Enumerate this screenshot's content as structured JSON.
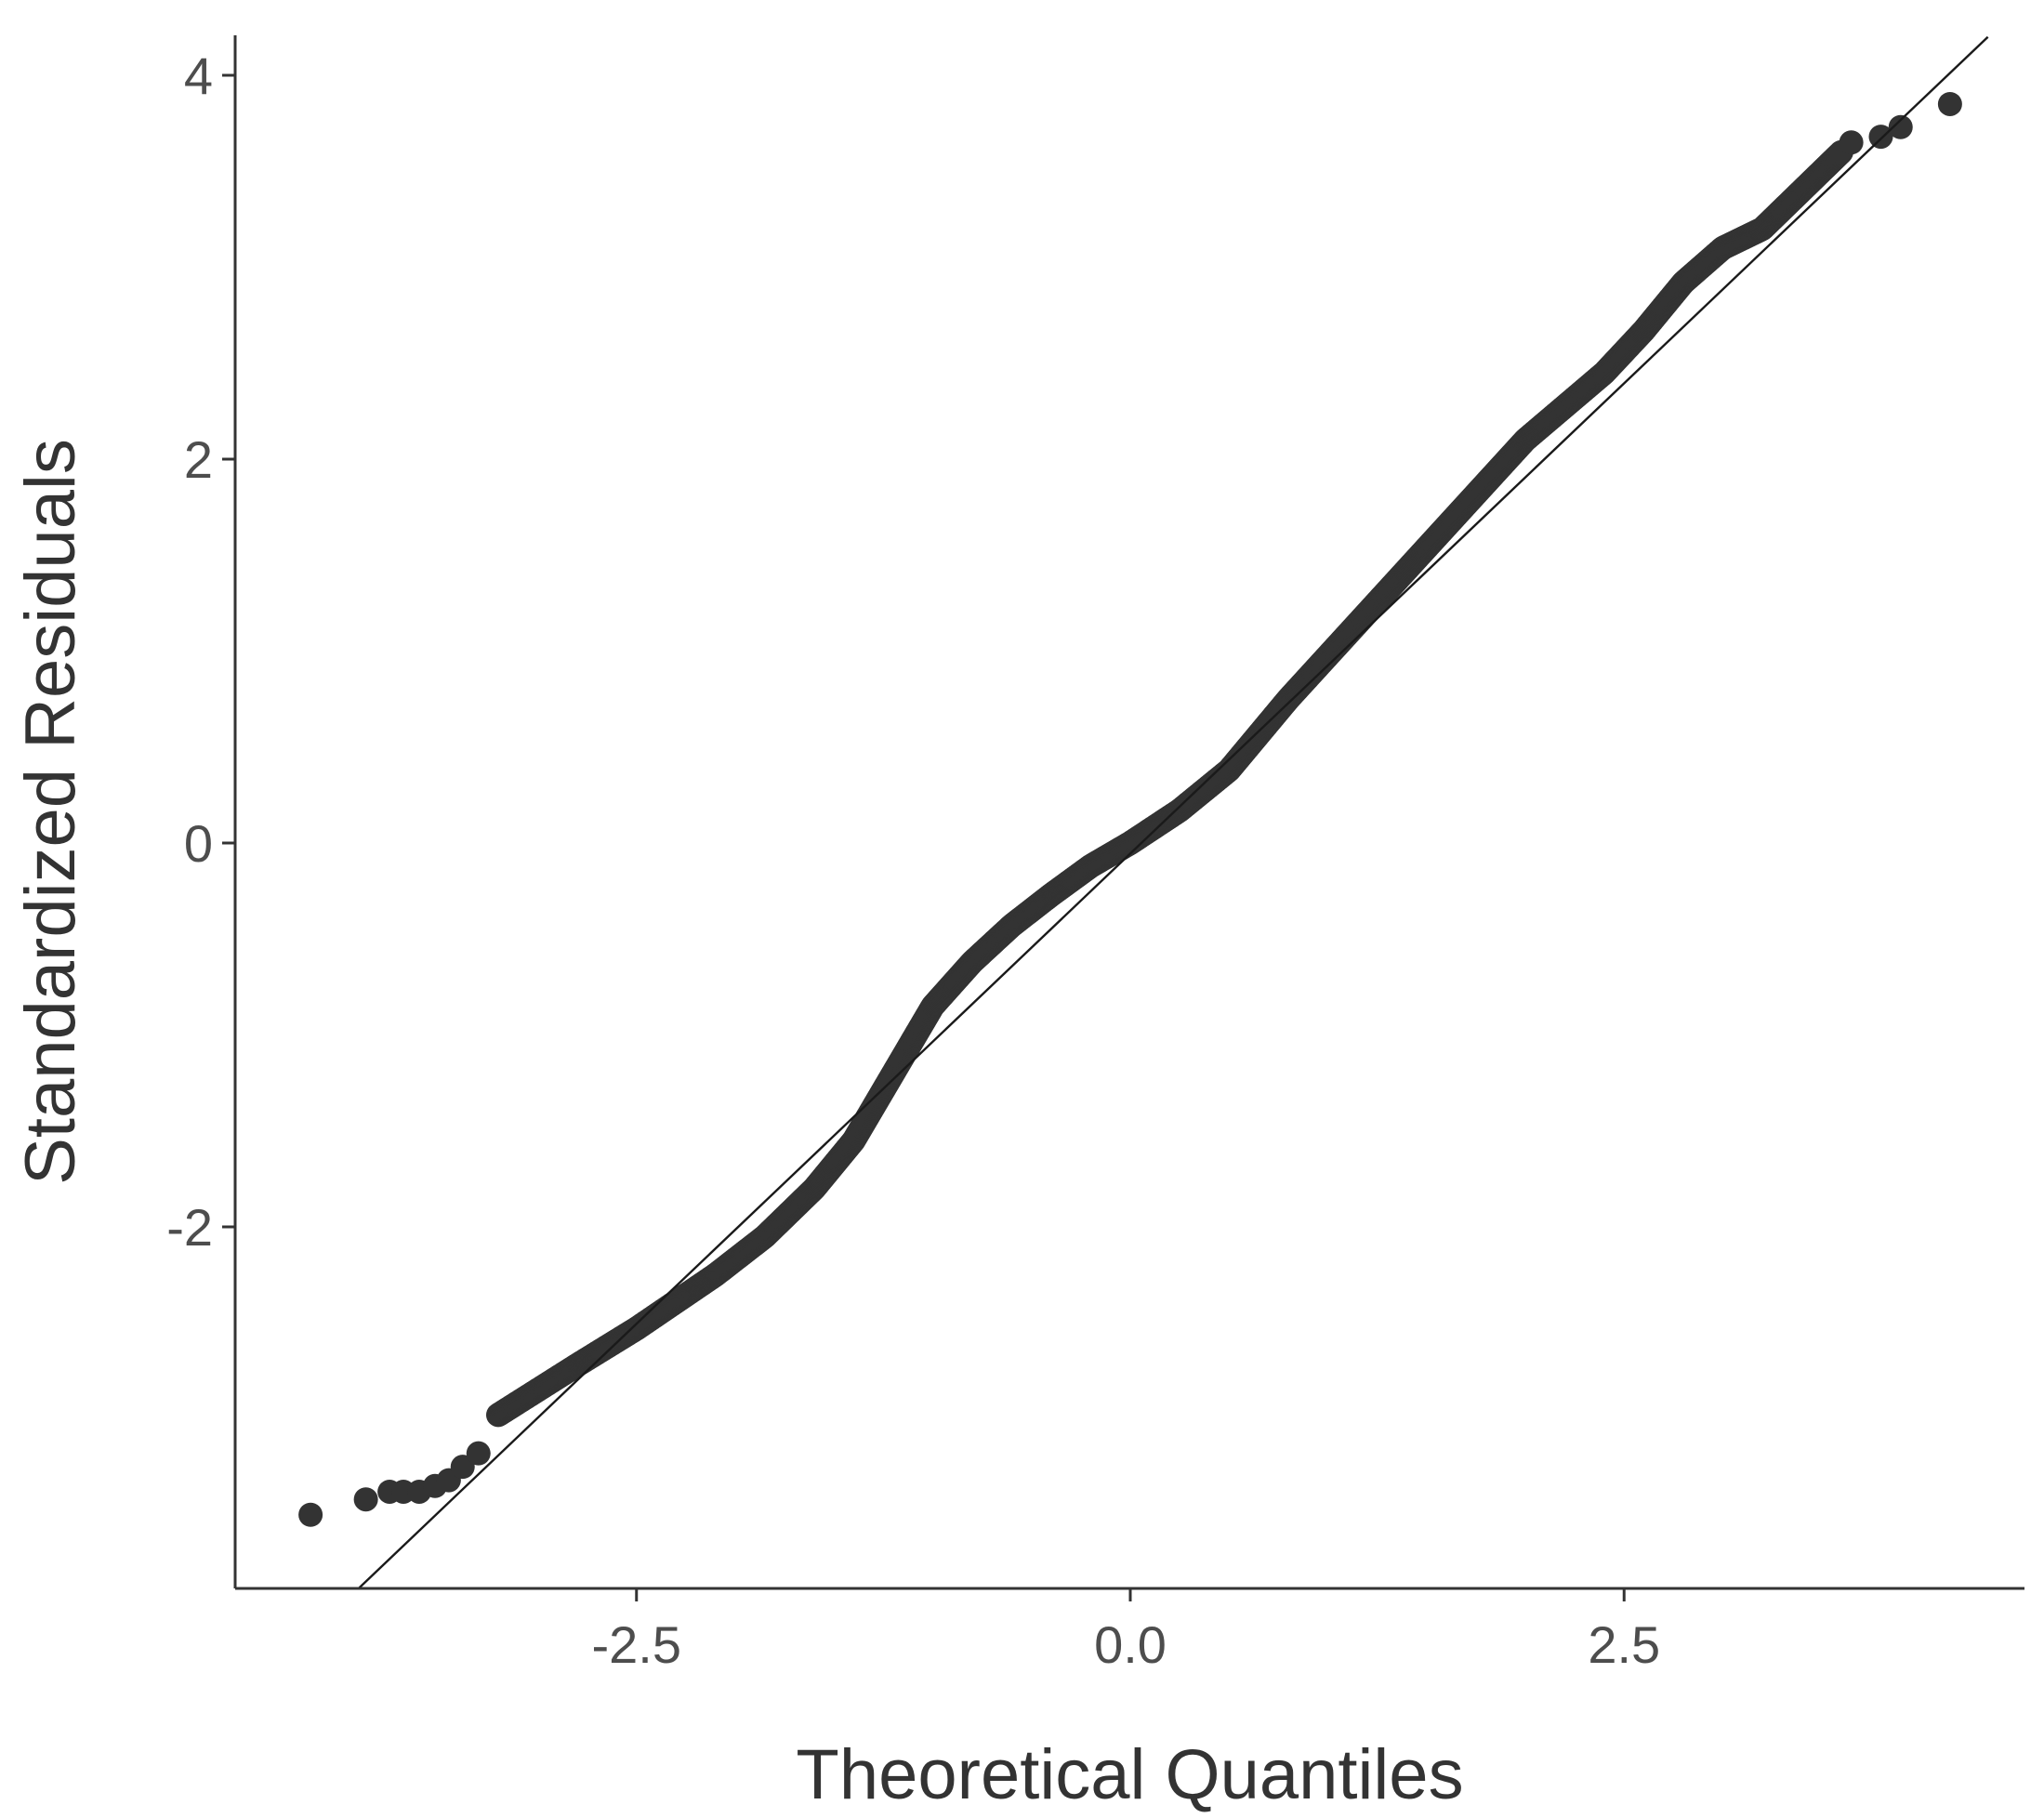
{
  "chart_data": {
    "type": "scatter",
    "subtype": "qq-plot",
    "title": "",
    "xlabel": "Theoretical Quantiles",
    "ylabel": "Standardized Residuals",
    "xlim": [
      -4.55,
      4.55
    ],
    "ylim": [
      -3.88,
      4.2
    ],
    "x_ticks": [
      -2.5,
      0.0,
      2.5
    ],
    "x_tick_labels": [
      "-2.5",
      "0.0",
      "2.5"
    ],
    "y_ticks": [
      -2,
      0,
      2,
      4
    ],
    "y_tick_labels": [
      "-2",
      "0",
      "2",
      "4"
    ],
    "grid": false,
    "legend": "none",
    "point_color": "#333333",
    "line_color": "#1a1a1a",
    "reference_line": {
      "slope": 0.98,
      "intercept": -0.055
    },
    "quantile_curve_knots": {
      "x": [
        -3.2,
        -2.8,
        -2.5,
        -2.1,
        -1.85,
        -1.6,
        -1.4,
        -1.2,
        -1.0,
        -0.8,
        -0.6,
        -0.4,
        -0.2,
        0.0,
        0.25,
        0.5,
        0.8,
        1.2,
        1.6,
        2.0,
        2.4,
        2.6,
        2.8,
        3.0,
        3.2,
        3.35,
        3.45,
        3.6
      ],
      "y": [
        -2.98,
        -2.72,
        -2.53,
        -2.25,
        -2.05,
        -1.8,
        -1.55,
        -1.2,
        -0.85,
        -0.62,
        -0.43,
        -0.27,
        -0.12,
        0.0,
        0.17,
        0.38,
        0.75,
        1.2,
        1.65,
        2.1,
        2.45,
        2.67,
        2.92,
        3.1,
        3.2,
        3.35,
        3.45,
        3.6
      ]
    },
    "extreme_points": {
      "x": [
        -4.15,
        -3.87,
        -3.75,
        -3.68,
        -3.6,
        -3.52,
        -3.45,
        -3.38,
        -3.3,
        3.65,
        3.8,
        3.9,
        4.15
      ],
      "y": [
        -3.5,
        -3.42,
        -3.38,
        -3.38,
        -3.38,
        -3.35,
        -3.32,
        -3.25,
        -3.18,
        3.65,
        3.68,
        3.73,
        3.85
      ]
    },
    "dense_point_spacing": 0.0045
  }
}
